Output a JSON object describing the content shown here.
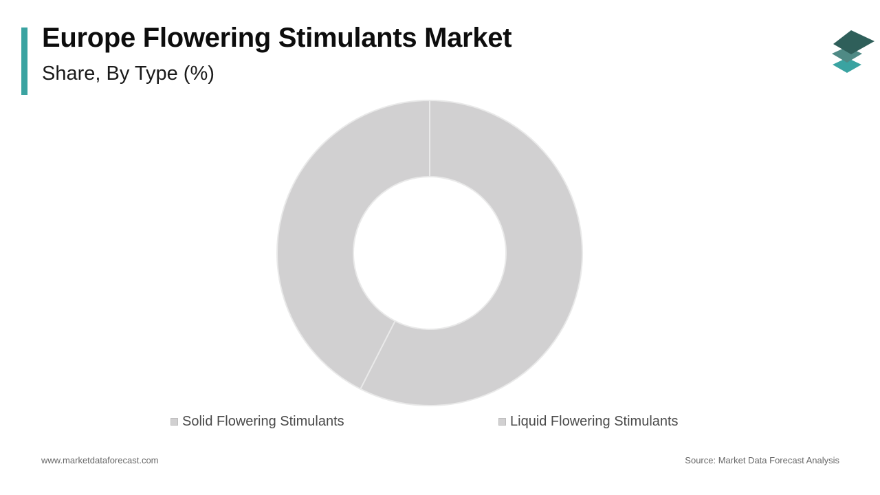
{
  "header": {
    "title": "Europe Flowering Stimulants Market",
    "subtitle": "Share, By Type (%)"
  },
  "logo": {
    "icon": "stacked-layers-logo-icon",
    "colors": [
      "#2f5f5a",
      "#4f8a85",
      "#3aa3a1"
    ]
  },
  "colors": {
    "accent": "#3aa3a1",
    "slice_fill": "#d1d0d1",
    "slice_stroke": "#e9e9e9"
  },
  "chart_data": {
    "type": "pie",
    "donut": true,
    "title": "Europe Flowering Stimulants Market",
    "subtitle": "Share, By Type (%)",
    "categories": [
      "Solid Flowering Stimulants",
      "Liquid Flowering Stimulants"
    ],
    "values": [
      57.5,
      42.5
    ],
    "start_angle_deg": 0,
    "direction": "clockwise",
    "legend": "bottom"
  },
  "footer": {
    "website": "www.marketdataforecast.com",
    "source": "Source: Market Data Forecast Analysis"
  }
}
